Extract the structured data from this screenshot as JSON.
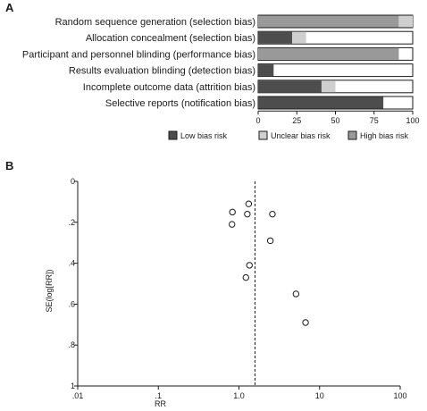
{
  "panel_a_label": "A",
  "panel_b_label": "B",
  "chart_data": [
    {
      "type": "bar",
      "orientation": "horizontal",
      "stacked": true,
      "categories": [
        "Random sequence generation (selection bias)",
        "Allocation concealment (selection bias)",
        "Participant and personnel blinding (performance bias)",
        "Results evaluation blinding (detection bias)",
        "Incomplete outcome data (attrition bias)",
        "Selective reports (notification bias)"
      ],
      "series": [
        {
          "name": "Low bias risk",
          "color": "#4d4d4d",
          "values": [
            0,
            22,
            0,
            10,
            41,
            81
          ]
        },
        {
          "name": "High bias risk",
          "color": "#999999",
          "values": [
            91,
            0,
            91,
            0,
            0,
            0
          ]
        },
        {
          "name": "Unclear bias risk",
          "color": "#cfcfcf",
          "values": [
            9,
            9,
            0,
            0,
            9,
            0
          ]
        }
      ],
      "legend_order": [
        "Low bias risk",
        "Unclear bias risk",
        "High bias risk"
      ],
      "xlim": [
        0,
        100
      ],
      "xticks": [
        "0",
        "25",
        "50",
        "75",
        "100"
      ],
      "xtick_values": [
        0,
        25,
        50,
        75,
        100
      ],
      "legend_position": "bottom-right"
    },
    {
      "type": "scatter",
      "xlabel": "RR",
      "ylabel": "SE(log[RR])",
      "xscale": "log",
      "xlim": [
        0.01,
        100
      ],
      "xticks": [
        ".01",
        ".1",
        "1.0",
        "10",
        "100"
      ],
      "xtick_values": [
        0.01,
        0.1,
        1,
        10,
        100
      ],
      "ylim": [
        0,
        1
      ],
      "y_inverted": true,
      "yticks": [
        "0",
        ".2",
        ".4",
        ".6",
        ".8",
        "1"
      ],
      "ytick_values": [
        0,
        0.2,
        0.4,
        0.6,
        0.8,
        1
      ],
      "reference_line_x": 1.58,
      "points": [
        {
          "x": 1.32,
          "y": 0.11
        },
        {
          "x": 0.83,
          "y": 0.15
        },
        {
          "x": 1.27,
          "y": 0.16
        },
        {
          "x": 2.6,
          "y": 0.16
        },
        {
          "x": 0.82,
          "y": 0.21
        },
        {
          "x": 2.45,
          "y": 0.29
        },
        {
          "x": 1.35,
          "y": 0.41
        },
        {
          "x": 1.22,
          "y": 0.47
        },
        {
          "x": 5.1,
          "y": 0.55
        },
        {
          "x": 6.7,
          "y": 0.69
        }
      ]
    }
  ]
}
